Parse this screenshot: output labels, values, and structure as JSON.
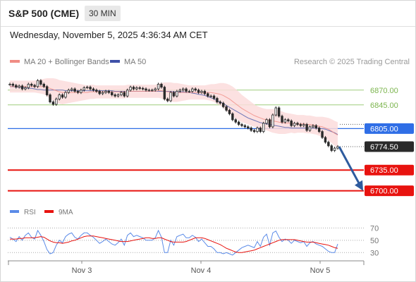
{
  "header": {
    "title": "S&P 500 (CME)",
    "timeframe": "30 MIN",
    "timestamp": "Wednesday, November 5, 2025 4:36:34 AM CET"
  },
  "legend": {
    "ma20": "MA 20 + Bollinger Bands",
    "ma50": "MA 50",
    "credit": "Research © 2025 Trading Central"
  },
  "rsi_legend": {
    "rsi": "RSI",
    "ma": "9MA"
  },
  "colors": {
    "ma20": "#f08c84",
    "bollinger_fill": "#fbdcdc",
    "ma50": "#3f51a8",
    "candle": "#2a2a2a",
    "resistance": "#9fce7d",
    "pivot": "#2f6ee6",
    "support": "#e8130f",
    "last": "#2a2a2a",
    "rsi": "#5b8be8",
    "rsi_ma": "#e8130f",
    "arrow": "#2e5b9e"
  },
  "chart_data": {
    "type": "candlestick",
    "instrument": "S&P 500 (CME)",
    "interval": "30 MIN",
    "x_ticks": [
      "Nov 3",
      "Nov 4",
      "Nov 5"
    ],
    "y_range": [
      6690,
      6890
    ],
    "levels": [
      {
        "value": 6870.0,
        "label": "6870.00",
        "kind": "resistance"
      },
      {
        "value": 6845.0,
        "label": "6845.00",
        "kind": "resistance"
      },
      {
        "value": 6805.0,
        "label": "6805.00",
        "kind": "pivot"
      },
      {
        "value": 6774.5,
        "label": "6774.50",
        "kind": "last"
      },
      {
        "value": 6735.0,
        "label": "6735.00",
        "kind": "support"
      },
      {
        "value": 6700.0,
        "label": "6700.00",
        "kind": "support"
      }
    ],
    "forecast_arrow": {
      "from": 6774.5,
      "to": 6700.0,
      "direction": "down"
    },
    "close": [
      6880,
      6878,
      6875,
      6877,
      6872,
      6874,
      6880,
      6878,
      6876,
      6886,
      6880,
      6876,
      6862,
      6850,
      6846,
      6855,
      6862,
      6858,
      6866,
      6870,
      6872,
      6868,
      6866,
      6870,
      6874,
      6875,
      6872,
      6870,
      6868,
      6864,
      6866,
      6868,
      6866,
      6862,
      6860,
      6862,
      6866,
      6860,
      6870,
      6875,
      6872,
      6874,
      6873,
      6872,
      6870,
      6870,
      6870,
      6872,
      6880,
      6875,
      6855,
      6852,
      6866,
      6860,
      6868,
      6870,
      6872,
      6868,
      6868,
      6872,
      6870,
      6866,
      6868,
      6864,
      6860,
      6860,
      6856,
      6850,
      6848,
      6842,
      6836,
      6830,
      6820,
      6816,
      6812,
      6810,
      6808,
      6806,
      6802,
      6800,
      6806,
      6800,
      6814,
      6820,
      6808,
      6828,
      6840,
      6826,
      6816,
      6820,
      6818,
      6810,
      6814,
      6812,
      6810,
      6812,
      6802,
      6808,
      6810,
      6806,
      6800,
      6790,
      6782,
      6776,
      6768,
      6772,
      6774.5
    ],
    "ma20": [
      6876,
      6876,
      6876,
      6876,
      6876,
      6876,
      6876,
      6876,
      6876,
      6876,
      6876,
      6876,
      6875,
      6873,
      6871,
      6869,
      6867,
      6866,
      6866,
      6866,
      6866,
      6866,
      6866,
      6866,
      6866,
      6866,
      6867,
      6867,
      6867,
      6867,
      6867,
      6867,
      6867,
      6867,
      6867,
      6867,
      6867,
      6867,
      6868,
      6868,
      6868,
      6868,
      6868,
      6868,
      6868,
      6868,
      6868,
      6868,
      6869,
      6869,
      6868,
      6867,
      6867,
      6866,
      6866,
      6866,
      6866,
      6866,
      6866,
      6866,
      6866,
      6866,
      6866,
      6866,
      6866,
      6866,
      6865,
      6864,
      6863,
      6861,
      6858,
      6855,
      6851,
      6847,
      6843,
      6839,
      6836,
      6833,
      6830,
      6827,
      6825,
      6823,
      6821,
      6820,
      6819,
      6818,
      6817,
      6816,
      6815,
      6814,
      6814,
      6814,
      6813,
      6813,
      6813,
      6813,
      6812,
      6812,
      6811,
      6810,
      6809,
      6808,
      6806,
      6804,
      6801,
      6797,
      6794
    ],
    "ma50": [
      6876,
      6876,
      6875,
      6875,
      6874,
      6874,
      6873,
      6873,
      6872,
      6871,
      6871,
      6870,
      6870,
      6870,
      6870,
      6870,
      6870,
      6870,
      6869,
      6869,
      6869,
      6869,
      6869,
      6869,
      6869,
      6869,
      6869,
      6869,
      6869,
      6869,
      6869,
      6869,
      6869,
      6869,
      6868,
      6868,
      6868,
      6868,
      6868,
      6868,
      6868,
      6868,
      6868,
      6868,
      6868,
      6868,
      6868,
      6868,
      6868,
      6868,
      6868,
      6868,
      6868,
      6867,
      6867,
      6867,
      6867,
      6866,
      6866,
      6865,
      6864,
      6863,
      6862,
      6861,
      6859,
      6857,
      6855,
      6852,
      6850,
      6847,
      6844,
      6841,
      6838,
      6835,
      6832,
      6829,
      6826,
      6823,
      6821,
      6819,
      6817,
      6815,
      6814,
      6813,
      6812,
      6811,
      6810,
      6809,
      6808,
      6807,
      6807,
      6806,
      6806,
      6806,
      6806,
      6806,
      6806,
      6806,
      6806,
      6806,
      6805,
      6805,
      6804,
      6802,
      6800,
      6798,
      6795
    ],
    "bollinger_width": [
      10,
      10,
      10,
      10,
      10,
      10,
      10,
      10,
      10,
      11,
      12,
      13,
      15,
      17,
      19,
      20,
      20,
      20,
      19,
      18,
      17,
      16,
      15,
      14,
      13,
      12,
      12,
      12,
      11,
      11,
      11,
      11,
      11,
      11,
      11,
      11,
      11,
      11,
      11,
      11,
      11,
      11,
      11,
      11,
      11,
      11,
      11,
      11,
      12,
      13,
      15,
      16,
      16,
      16,
      16,
      15,
      14,
      13,
      12,
      12,
      12,
      12,
      12,
      12,
      13,
      14,
      15,
      17,
      19,
      21,
      23,
      24,
      25,
      25,
      24,
      23,
      22,
      21,
      20,
      19,
      18,
      18,
      18,
      18,
      19,
      20,
      20,
      20,
      19,
      18,
      17,
      16,
      16,
      15,
      15,
      15,
      15,
      15,
      15,
      15,
      16,
      17,
      18,
      19,
      20,
      21,
      22
    ],
    "rsi": {
      "levels": [
        70,
        50,
        30
      ],
      "ylim": [
        20,
        75
      ],
      "rsi": [
        55,
        52,
        48,
        56,
        50,
        58,
        62,
        55,
        52,
        66,
        58,
        48,
        35,
        28,
        30,
        42,
        50,
        46,
        56,
        60,
        62,
        55,
        52,
        58,
        62,
        62,
        58,
        55,
        50,
        45,
        48,
        52,
        48,
        44,
        42,
        46,
        52,
        42,
        58,
        62,
        56,
        58,
        56,
        54,
        50,
        50,
        50,
        54,
        66,
        55,
        30,
        30,
        50,
        42,
        56,
        58,
        60,
        54,
        54,
        58,
        55,
        48,
        52,
        46,
        40,
        40,
        36,
        30,
        30,
        28,
        30,
        28,
        26,
        30,
        34,
        38,
        40,
        42,
        40,
        38,
        48,
        40,
        55,
        60,
        42,
        62,
        65,
        55,
        48,
        52,
        50,
        45,
        50,
        48,
        46,
        48,
        40,
        46,
        48,
        44,
        42,
        40,
        36,
        32,
        30,
        30,
        44
      ],
      "ma9": [
        52,
        52,
        52,
        53,
        53,
        54,
        54,
        54,
        54,
        55,
        56,
        55,
        52,
        49,
        47,
        46,
        46,
        45,
        46,
        47,
        49,
        50,
        52,
        54,
        56,
        57,
        57,
        57,
        56,
        55,
        54,
        53,
        52,
        51,
        50,
        49,
        48,
        48,
        48,
        49,
        50,
        51,
        52,
        53,
        54,
        54,
        53,
        53,
        54,
        54,
        52,
        50,
        48,
        47,
        47,
        47,
        47,
        48,
        50,
        52,
        54,
        54,
        54,
        53,
        51,
        49,
        47,
        45,
        43,
        40,
        37,
        35,
        33,
        31,
        30,
        30,
        31,
        32,
        33,
        34,
        36,
        38,
        40,
        42,
        44,
        46,
        48,
        50,
        51,
        51,
        51,
        51,
        51,
        50,
        49,
        48,
        47,
        47,
        47,
        46,
        45,
        44,
        43,
        42,
        40,
        38,
        37
      ]
    }
  }
}
